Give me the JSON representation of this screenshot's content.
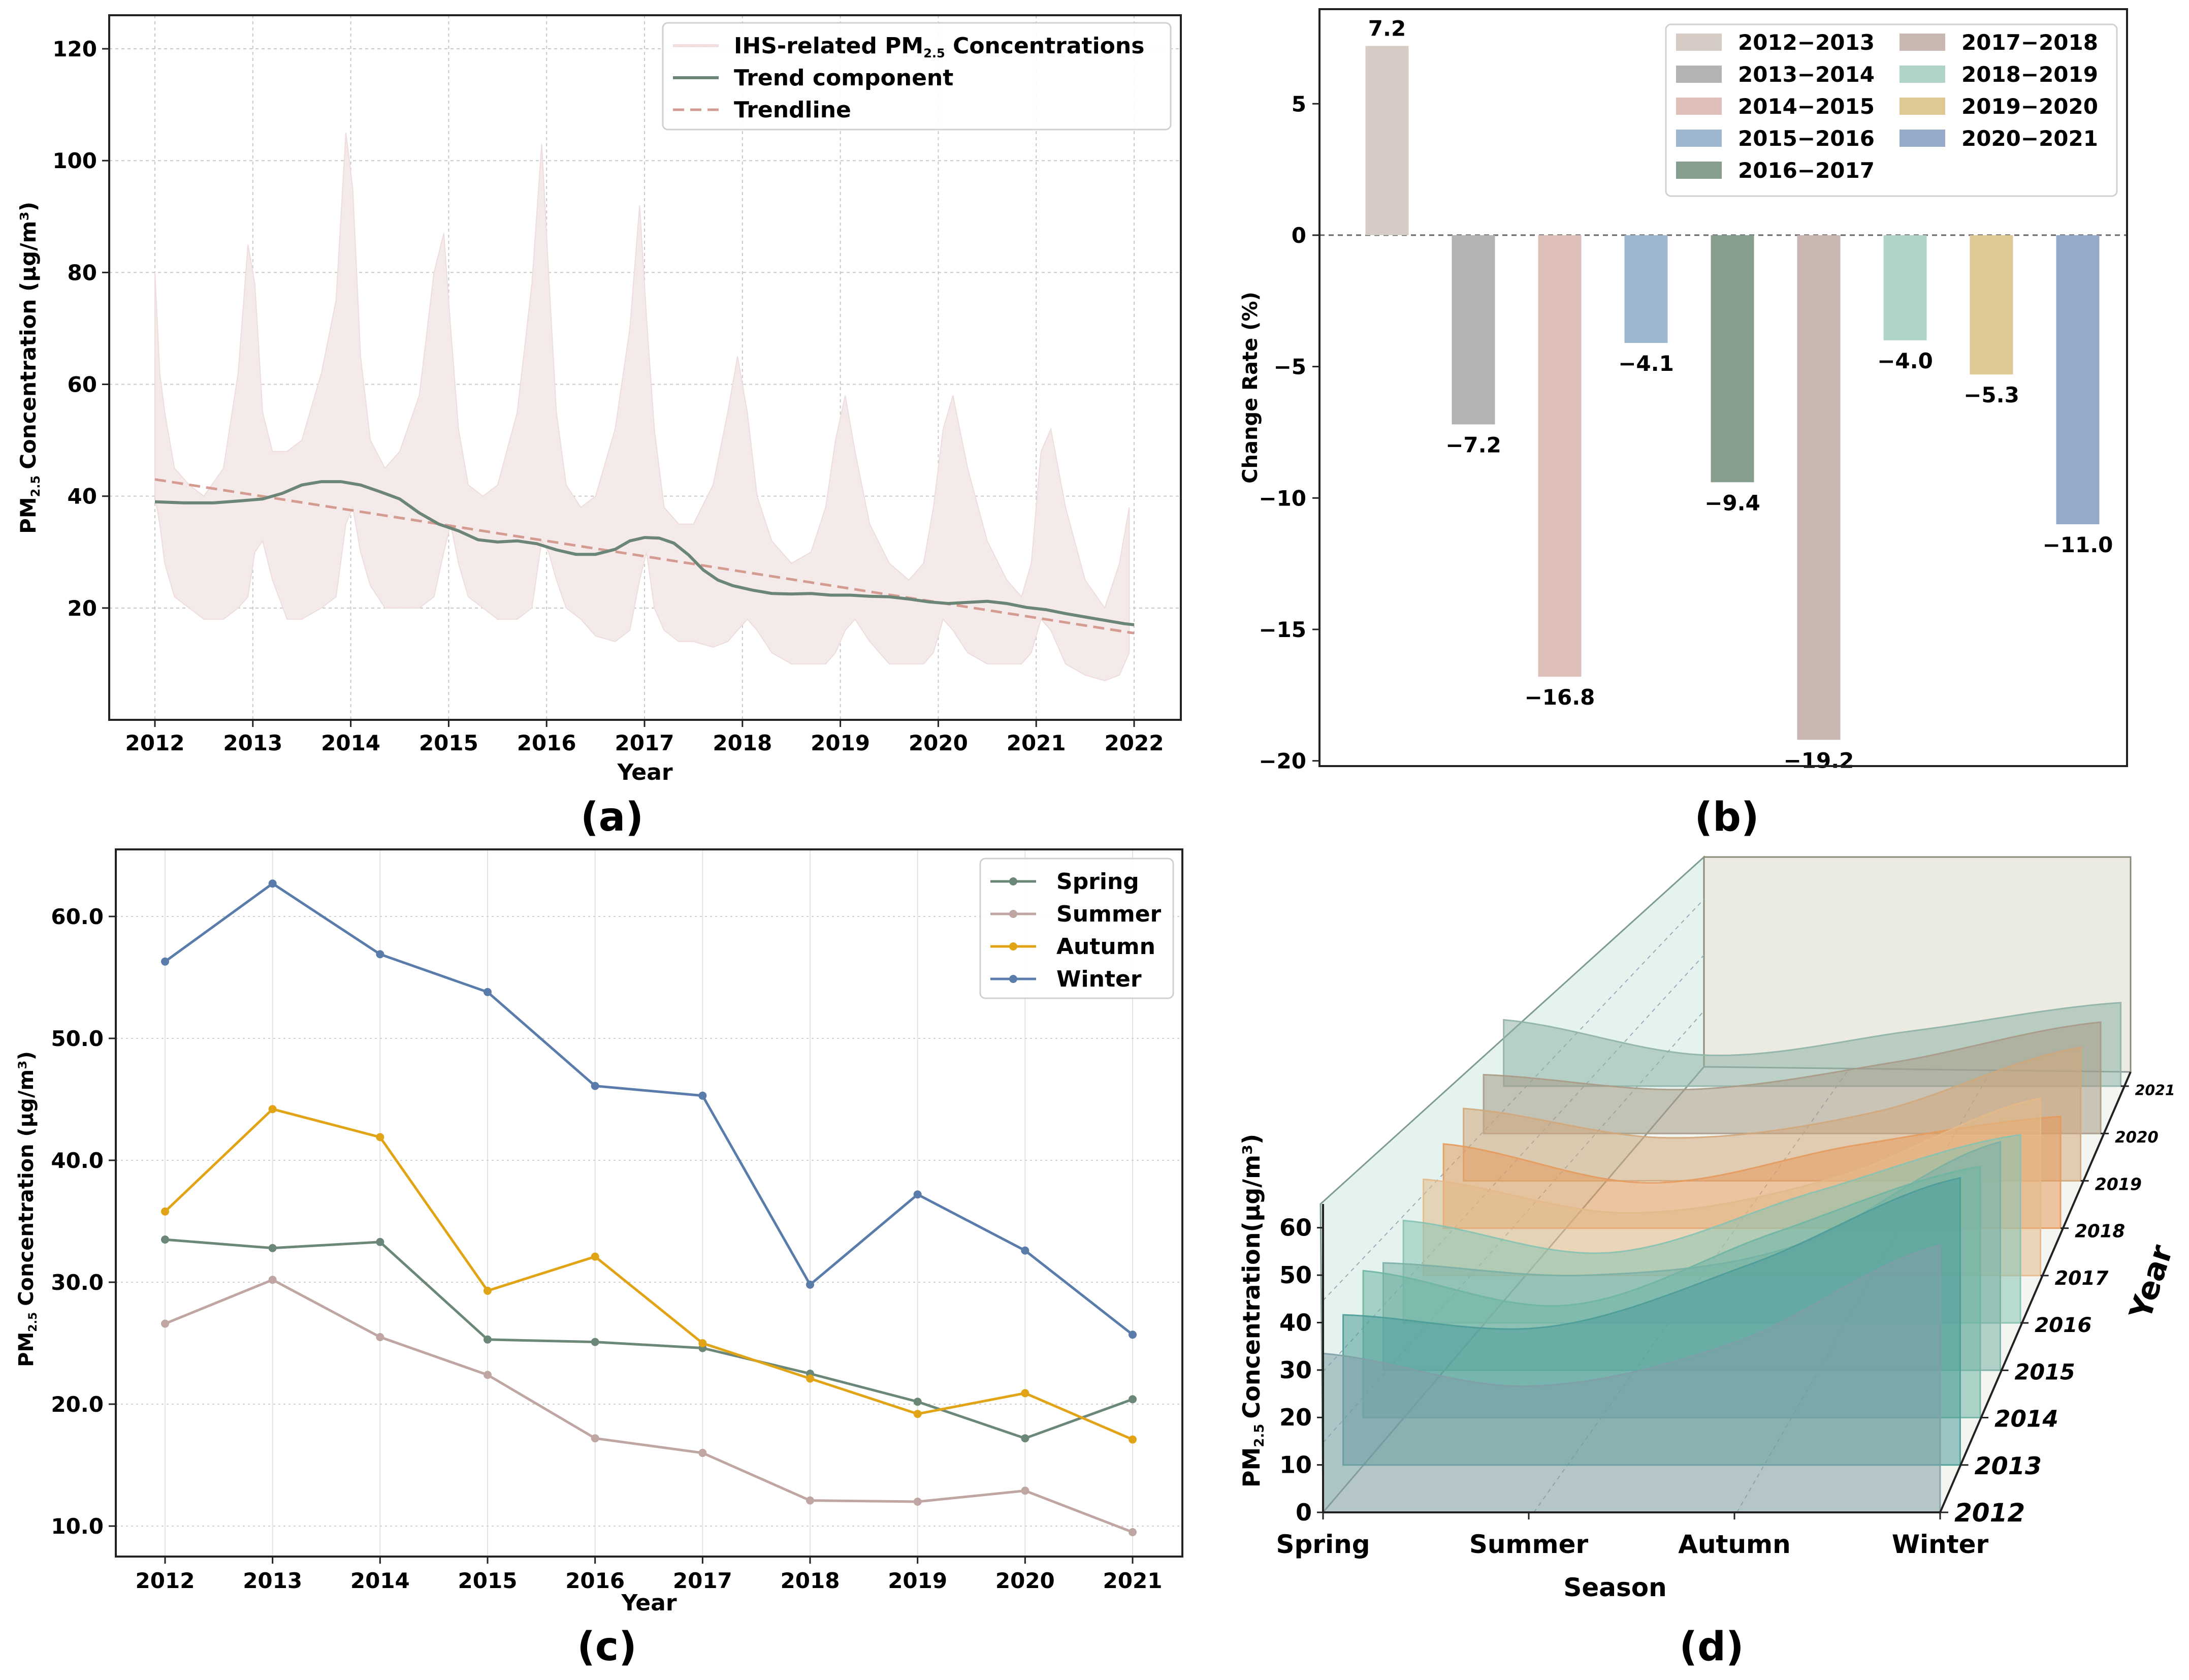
{
  "chart_data": [
    {
      "panel": "(a)",
      "type": "line",
      "title": "",
      "xlabel": "Year",
      "ylabel_main": "PM",
      "ylabel_sub": "2.5",
      "ylabel_rest": "Concentration (μg/m³)",
      "xlim": [
        2012,
        2022
      ],
      "ylim": [
        0,
        126
      ],
      "xticks": [
        "2012",
        "2013",
        "2014",
        "2015",
        "2016",
        "2017",
        "2018",
        "2019",
        "2020",
        "2021",
        "2022"
      ],
      "yticks": [
        "20",
        "40",
        "60",
        "80",
        "100",
        "120"
      ],
      "ytick_values": [
        20,
        40,
        60,
        80,
        100,
        120
      ],
      "legend": [
        "IHS-related  PM",
        "2.5",
        "  Concentrations",
        "Trend component",
        "Trendline"
      ],
      "colors": {
        "daily": "#f3e6e4",
        "trend": "#6b8577",
        "trendline": "#d49c91"
      },
      "daily_envelope": {
        "x": [
          2012.0,
          2012.05,
          2012.1,
          2012.2,
          2012.35,
          2012.5,
          2012.7,
          2012.85,
          2012.95,
          2013.02,
          2013.1,
          2013.2,
          2013.35,
          2013.5,
          2013.7,
          2013.85,
          2013.95,
          2014.02,
          2014.1,
          2014.2,
          2014.35,
          2014.5,
          2014.7,
          2014.85,
          2014.95,
          2015.02,
          2015.1,
          2015.2,
          2015.35,
          2015.5,
          2015.7,
          2015.85,
          2015.95,
          2016.02,
          2016.1,
          2016.2,
          2016.35,
          2016.5,
          2016.7,
          2016.85,
          2016.95,
          2017.02,
          2017.1,
          2017.2,
          2017.35,
          2017.5,
          2017.7,
          2017.85,
          2017.95,
          2018.05,
          2018.15,
          2018.3,
          2018.5,
          2018.7,
          2018.85,
          2018.95,
          2019.05,
          2019.15,
          2019.3,
          2019.5,
          2019.7,
          2019.85,
          2019.95,
          2020.05,
          2020.15,
          2020.3,
          2020.5,
          2020.7,
          2020.85,
          2020.95,
          2021.05,
          2021.15,
          2021.3,
          2021.5,
          2021.7,
          2021.85,
          2021.95
        ],
        "high": [
          80,
          62,
          55,
          45,
          42,
          40,
          45,
          62,
          85,
          78,
          55,
          48,
          48,
          50,
          62,
          75,
          105,
          95,
          65,
          50,
          45,
          48,
          58,
          80,
          87,
          70,
          52,
          42,
          40,
          42,
          55,
          78,
          103,
          80,
          55,
          42,
          38,
          40,
          52,
          70,
          92,
          72,
          52,
          38,
          35,
          35,
          42,
          55,
          65,
          55,
          40,
          32,
          28,
          30,
          38,
          50,
          58,
          48,
          35,
          28,
          25,
          28,
          38,
          52,
          58,
          45,
          32,
          25,
          22,
          28,
          48,
          52,
          38,
          25,
          20,
          28,
          38
        ],
        "low": [
          40,
          35,
          28,
          22,
          20,
          18,
          18,
          20,
          22,
          30,
          32,
          25,
          18,
          18,
          20,
          22,
          35,
          38,
          30,
          24,
          20,
          20,
          20,
          22,
          30,
          35,
          28,
          22,
          20,
          18,
          18,
          20,
          32,
          30,
          25,
          20,
          18,
          15,
          14,
          16,
          25,
          30,
          20,
          16,
          14,
          14,
          13,
          14,
          16,
          18,
          16,
          12,
          10,
          10,
          10,
          12,
          16,
          18,
          14,
          10,
          10,
          10,
          12,
          18,
          16,
          12,
          10,
          10,
          10,
          12,
          18,
          16,
          10,
          8,
          7,
          8,
          12
        ]
      },
      "trend": {
        "x": [
          2012.0,
          2012.3,
          2012.6,
          2012.9,
          2013.1,
          2013.3,
          2013.5,
          2013.7,
          2013.9,
          2014.1,
          2014.3,
          2014.5,
          2014.7,
          2014.9,
          2015.1,
          2015.3,
          2015.5,
          2015.7,
          2015.9,
          2016.1,
          2016.3,
          2016.5,
          2016.7,
          2016.85,
          2017.0,
          2017.15,
          2017.3,
          2017.45,
          2017.6,
          2017.75,
          2017.9,
          2018.1,
          2018.3,
          2018.5,
          2018.7,
          2018.9,
          2019.1,
          2019.3,
          2019.5,
          2019.7,
          2019.9,
          2020.1,
          2020.3,
          2020.5,
          2020.7,
          2020.9,
          2021.1,
          2021.3,
          2021.5,
          2021.7,
          2021.9,
          2022.0
        ],
        "y": [
          39.0,
          38.8,
          38.8,
          39.2,
          39.5,
          40.5,
          42.0,
          42.6,
          42.6,
          42.0,
          40.8,
          39.5,
          37.0,
          35.0,
          33.8,
          32.2,
          31.8,
          32.0,
          31.5,
          30.4,
          29.6,
          29.6,
          30.5,
          32.0,
          32.6,
          32.5,
          31.6,
          29.5,
          26.8,
          25.0,
          24.0,
          23.2,
          22.6,
          22.5,
          22.6,
          22.3,
          22.3,
          22.1,
          22.0,
          21.6,
          21.1,
          20.8,
          21.0,
          21.2,
          20.8,
          20.1,
          19.7,
          19.0,
          18.4,
          17.8,
          17.2,
          17.0
        ]
      },
      "trendline": {
        "x": [
          2012,
          2022
        ],
        "y": [
          43,
          15.5
        ]
      }
    },
    {
      "panel": "(b)",
      "type": "bar",
      "xlabel": "",
      "ylabel": "Change Rate (%)",
      "ylim": [
        -20.2,
        8.6
      ],
      "yticks": [
        "5",
        "0",
        "−5",
        "−10",
        "−15",
        "−20"
      ],
      "ytick_values": [
        5,
        0,
        -5,
        -10,
        -15,
        -20
      ],
      "categories": [
        "2012−2013",
        "2013−2014",
        "2014−2015",
        "2015−2016",
        "2016−2017",
        "2017−2018",
        "2018−2019",
        "2019−2020",
        "2020−2021"
      ],
      "values": [
        7.2,
        -7.2,
        -16.8,
        -4.1,
        -9.4,
        -19.2,
        -4.0,
        -5.3,
        -11.0
      ],
      "labels": [
        "7.2",
        "−7.2",
        "−16.8",
        "−4.1",
        "−9.4",
        "−19.2",
        "−4.0",
        "−5.3",
        "−11.0"
      ],
      "colors": [
        "#d6ccc5",
        "#b3b3b3",
        "#dfbfb9",
        "#9eb6d0",
        "#879e8f",
        "#c9b7b1",
        "#afd5c9",
        "#dec894",
        "#95a9c9"
      ],
      "legend_location": "upper right",
      "zero_line": true
    },
    {
      "panel": "(c)",
      "type": "line",
      "xlabel": "Year",
      "ylabel_main": "PM",
      "ylabel_sub": "2.5",
      "ylabel_rest": "Concentration (μg/m³)",
      "categories": [
        "2012",
        "2013",
        "2014",
        "2015",
        "2016",
        "2017",
        "2018",
        "2019",
        "2020",
        "2021"
      ],
      "ylim": [
        7.5,
        65.5
      ],
      "yticks": [
        "10.0",
        "20.0",
        "30.0",
        "40.0",
        "50.0",
        "60.0"
      ],
      "ytick_values": [
        10,
        20,
        30,
        40,
        50,
        60
      ],
      "series": [
        {
          "name": "Spring",
          "color": "#6b8777",
          "values": [
            33.5,
            32.8,
            33.3,
            25.3,
            25.1,
            24.6,
            22.5,
            20.2,
            17.2,
            20.4
          ]
        },
        {
          "name": "Summer",
          "color": "#bfa6a2",
          "values": [
            26.6,
            30.2,
            25.5,
            22.4,
            17.2,
            16.0,
            12.1,
            12.0,
            12.9,
            9.5
          ]
        },
        {
          "name": "Autumn",
          "color": "#e0a416",
          "values": [
            35.8,
            44.2,
            41.9,
            29.3,
            32.1,
            25.0,
            22.1,
            19.2,
            20.9,
            17.1
          ]
        },
        {
          "name": "Winter",
          "color": "#5a7cab",
          "values": [
            56.3,
            62.7,
            56.9,
            53.8,
            46.1,
            45.3,
            29.8,
            37.2,
            32.6,
            25.7
          ]
        }
      ]
    },
    {
      "panel": "(d)",
      "type": "area",
      "projection": "3d",
      "xlabel": "Season",
      "ylabel": "Year",
      "zlabel_main": "PM",
      "zlabel_sub": "2.5",
      "zlabel_rest": "Concentration(μg/m³)",
      "categories": [
        "Spring",
        "Summer",
        "Autumn",
        "Winter"
      ],
      "years": [
        "2012",
        "2013",
        "2014",
        "2015",
        "2016",
        "2017",
        "2018",
        "2019",
        "2020",
        "2021"
      ],
      "zticks": [
        "0",
        "10",
        "20",
        "30",
        "40",
        "50",
        "60"
      ],
      "ztick_values": [
        0,
        10,
        20,
        30,
        40,
        50,
        60
      ],
      "zlim": [
        0,
        65
      ],
      "series": [
        {
          "year": "2012",
          "color": "#7f9ea6",
          "values": [
            33.5,
            26.6,
            35.8,
            56.3
          ]
        },
        {
          "year": "2013",
          "color": "#4c9c99",
          "values": [
            32.8,
            30.2,
            44.2,
            62.7
          ]
        },
        {
          "year": "2014",
          "color": "#6fb5a4",
          "values": [
            33.3,
            25.5,
            41.9,
            56.9
          ]
        },
        {
          "year": "2015",
          "color": "#7ab0a5",
          "values": [
            25.3,
            22.4,
            29.3,
            53.8
          ]
        },
        {
          "year": "2016",
          "color": "#86c2b2",
          "values": [
            25.1,
            17.2,
            32.1,
            46.1
          ]
        },
        {
          "year": "2017",
          "color": "#e3b98a",
          "values": [
            24.6,
            16.0,
            25.0,
            45.3
          ]
        },
        {
          "year": "2018",
          "color": "#e59a5c",
          "values": [
            22.5,
            12.1,
            22.1,
            29.8
          ]
        },
        {
          "year": "2019",
          "color": "#d2a77b",
          "values": [
            20.2,
            12.0,
            19.2,
            37.2
          ]
        },
        {
          "year": "2020",
          "color": "#a89a86",
          "values": [
            17.2,
            12.9,
            20.9,
            32.6
          ]
        },
        {
          "year": "2021",
          "color": "#8fb2a8",
          "values": [
            20.4,
            9.5,
            17.1,
            25.7
          ]
        }
      ]
    }
  ],
  "panel_labels": [
    "(a)",
    "(b)",
    "(c)",
    "(d)"
  ]
}
